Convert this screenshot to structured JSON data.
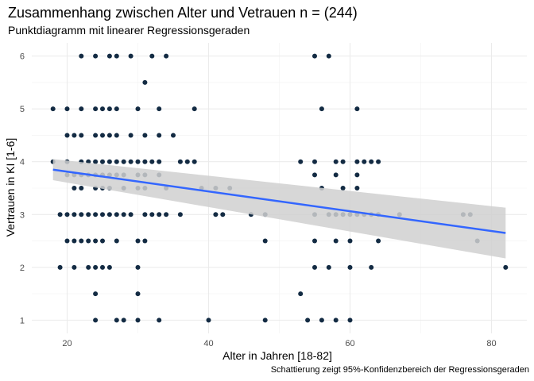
{
  "chart_data": {
    "type": "scatter",
    "title": "Zusammenhang zwischen Alter und Vetrauen n = (244)",
    "subtitle": "Punktdiagramm mit linearer Regressionsgeraden",
    "caption": "Schattierung zeigt 95%-Konfidenzbereich der Regressionsgeraden",
    "xlabel": "Alter in Jahren [18-82]",
    "ylabel": "Vertrauen in KI [1-6]",
    "xlim": [
      15,
      85
    ],
    "ylim": [
      0.75,
      6.25
    ],
    "x_ticks": [
      20,
      40,
      60,
      80
    ],
    "y_ticks": [
      1,
      2,
      3,
      4,
      5,
      6
    ],
    "grid": true,
    "colors": {
      "points": "#132b43",
      "line": "#3366ff",
      "band": "#d0d0d0"
    },
    "regression": {
      "x": [
        18,
        82
      ],
      "y": [
        3.85,
        2.65
      ],
      "ci_lower": [
        3.65,
        2.17
      ],
      "ci_upper": [
        4.05,
        3.13
      ]
    },
    "points": [
      {
        "x": 22,
        "y": 6
      },
      {
        "x": 24,
        "y": 6
      },
      {
        "x": 26,
        "y": 6
      },
      {
        "x": 27,
        "y": 6
      },
      {
        "x": 29,
        "y": 6
      },
      {
        "x": 32,
        "y": 6
      },
      {
        "x": 34,
        "y": 6
      },
      {
        "x": 55,
        "y": 6
      },
      {
        "x": 57,
        "y": 6
      },
      {
        "x": 31,
        "y": 5.5
      },
      {
        "x": 18,
        "y": 5
      },
      {
        "x": 20,
        "y": 5
      },
      {
        "x": 22,
        "y": 5
      },
      {
        "x": 24,
        "y": 5
      },
      {
        "x": 25,
        "y": 5
      },
      {
        "x": 26,
        "y": 5
      },
      {
        "x": 27,
        "y": 5
      },
      {
        "x": 30,
        "y": 5
      },
      {
        "x": 33,
        "y": 5
      },
      {
        "x": 38,
        "y": 5
      },
      {
        "x": 56,
        "y": 5
      },
      {
        "x": 61,
        "y": 5
      },
      {
        "x": 20,
        "y": 4.5
      },
      {
        "x": 21,
        "y": 4.5
      },
      {
        "x": 22,
        "y": 4.5
      },
      {
        "x": 24,
        "y": 4.5
      },
      {
        "x": 25,
        "y": 4.5
      },
      {
        "x": 26,
        "y": 4.5
      },
      {
        "x": 27,
        "y": 4.5
      },
      {
        "x": 29,
        "y": 4.5
      },
      {
        "x": 31,
        "y": 4.5
      },
      {
        "x": 33,
        "y": 4.5
      },
      {
        "x": 35,
        "y": 4.5
      },
      {
        "x": 18,
        "y": 4
      },
      {
        "x": 20,
        "y": 4
      },
      {
        "x": 22,
        "y": 4
      },
      {
        "x": 23,
        "y": 4
      },
      {
        "x": 24,
        "y": 4
      },
      {
        "x": 25,
        "y": 4
      },
      {
        "x": 26,
        "y": 4
      },
      {
        "x": 27,
        "y": 4
      },
      {
        "x": 28,
        "y": 4
      },
      {
        "x": 29,
        "y": 4
      },
      {
        "x": 30,
        "y": 4
      },
      {
        "x": 31,
        "y": 4
      },
      {
        "x": 32,
        "y": 4
      },
      {
        "x": 33,
        "y": 4
      },
      {
        "x": 36,
        "y": 4
      },
      {
        "x": 37,
        "y": 4
      },
      {
        "x": 38,
        "y": 4
      },
      {
        "x": 53,
        "y": 4
      },
      {
        "x": 55,
        "y": 4
      },
      {
        "x": 58,
        "y": 4
      },
      {
        "x": 59,
        "y": 4
      },
      {
        "x": 61,
        "y": 4
      },
      {
        "x": 62,
        "y": 4
      },
      {
        "x": 63,
        "y": 4
      },
      {
        "x": 64,
        "y": 4
      },
      {
        "x": 20,
        "y": 3.75
      },
      {
        "x": 21,
        "y": 3.75
      },
      {
        "x": 22,
        "y": 3.75
      },
      {
        "x": 23,
        "y": 3.75
      },
      {
        "x": 24,
        "y": 3.75
      },
      {
        "x": 25,
        "y": 3.75
      },
      {
        "x": 26,
        "y": 3.75
      },
      {
        "x": 27,
        "y": 3.75
      },
      {
        "x": 28,
        "y": 3.75
      },
      {
        "x": 30,
        "y": 3.75
      },
      {
        "x": 31,
        "y": 3.75
      },
      {
        "x": 33,
        "y": 3.75
      },
      {
        "x": 55,
        "y": 3.75
      },
      {
        "x": 58,
        "y": 3.75
      },
      {
        "x": 61,
        "y": 3.75
      },
      {
        "x": 21,
        "y": 3.5
      },
      {
        "x": 22,
        "y": 3.5
      },
      {
        "x": 24,
        "y": 3.5
      },
      {
        "x": 25,
        "y": 3.5
      },
      {
        "x": 26,
        "y": 3.5
      },
      {
        "x": 28,
        "y": 3.5
      },
      {
        "x": 30,
        "y": 3.5
      },
      {
        "x": 31,
        "y": 3.5
      },
      {
        "x": 34,
        "y": 3.5
      },
      {
        "x": 39,
        "y": 3.5
      },
      {
        "x": 41,
        "y": 3.5
      },
      {
        "x": 43,
        "y": 3.5
      },
      {
        "x": 56,
        "y": 3.5
      },
      {
        "x": 59,
        "y": 3.5
      },
      {
        "x": 61,
        "y": 3.5
      },
      {
        "x": 19,
        "y": 3
      },
      {
        "x": 20,
        "y": 3
      },
      {
        "x": 21,
        "y": 3
      },
      {
        "x": 22,
        "y": 3
      },
      {
        "x": 23,
        "y": 3
      },
      {
        "x": 24,
        "y": 3
      },
      {
        "x": 25,
        "y": 3
      },
      {
        "x": 26,
        "y": 3
      },
      {
        "x": 27,
        "y": 3
      },
      {
        "x": 28,
        "y": 3
      },
      {
        "x": 29,
        "y": 3
      },
      {
        "x": 31,
        "y": 3
      },
      {
        "x": 32,
        "y": 3
      },
      {
        "x": 33,
        "y": 3
      },
      {
        "x": 34,
        "y": 3
      },
      {
        "x": 36,
        "y": 3
      },
      {
        "x": 41,
        "y": 3
      },
      {
        "x": 42,
        "y": 3
      },
      {
        "x": 46,
        "y": 3
      },
      {
        "x": 48,
        "y": 3
      },
      {
        "x": 55,
        "y": 3
      },
      {
        "x": 57,
        "y": 3
      },
      {
        "x": 58,
        "y": 3
      },
      {
        "x": 59,
        "y": 3
      },
      {
        "x": 60,
        "y": 3
      },
      {
        "x": 61,
        "y": 3
      },
      {
        "x": 62,
        "y": 3
      },
      {
        "x": 63,
        "y": 3
      },
      {
        "x": 64,
        "y": 3
      },
      {
        "x": 67,
        "y": 3
      },
      {
        "x": 76,
        "y": 3
      },
      {
        "x": 77,
        "y": 3
      },
      {
        "x": 20,
        "y": 2.5
      },
      {
        "x": 21,
        "y": 2.5
      },
      {
        "x": 22,
        "y": 2.5
      },
      {
        "x": 23,
        "y": 2.5
      },
      {
        "x": 24,
        "y": 2.5
      },
      {
        "x": 25,
        "y": 2.5
      },
      {
        "x": 27,
        "y": 2.5
      },
      {
        "x": 30,
        "y": 2.5
      },
      {
        "x": 31,
        "y": 2.5
      },
      {
        "x": 48,
        "y": 2.5
      },
      {
        "x": 55,
        "y": 2.5
      },
      {
        "x": 58,
        "y": 2.5
      },
      {
        "x": 60,
        "y": 2.5
      },
      {
        "x": 64,
        "y": 2.5
      },
      {
        "x": 78,
        "y": 2.5
      },
      {
        "x": 19,
        "y": 2
      },
      {
        "x": 21,
        "y": 2
      },
      {
        "x": 23,
        "y": 2
      },
      {
        "x": 24,
        "y": 2
      },
      {
        "x": 25,
        "y": 2
      },
      {
        "x": 26,
        "y": 2
      },
      {
        "x": 30,
        "y": 2
      },
      {
        "x": 55,
        "y": 2
      },
      {
        "x": 57,
        "y": 2
      },
      {
        "x": 60,
        "y": 2
      },
      {
        "x": 63,
        "y": 2
      },
      {
        "x": 82,
        "y": 2
      },
      {
        "x": 24,
        "y": 1.5
      },
      {
        "x": 30,
        "y": 1.5
      },
      {
        "x": 53,
        "y": 1.5
      },
      {
        "x": 24,
        "y": 1
      },
      {
        "x": 27,
        "y": 1
      },
      {
        "x": 28,
        "y": 1
      },
      {
        "x": 30,
        "y": 1
      },
      {
        "x": 33,
        "y": 1
      },
      {
        "x": 40,
        "y": 1
      },
      {
        "x": 48,
        "y": 1
      },
      {
        "x": 54,
        "y": 1
      },
      {
        "x": 56,
        "y": 1
      },
      {
        "x": 58,
        "y": 1
      },
      {
        "x": 60,
        "y": 1
      }
    ]
  }
}
